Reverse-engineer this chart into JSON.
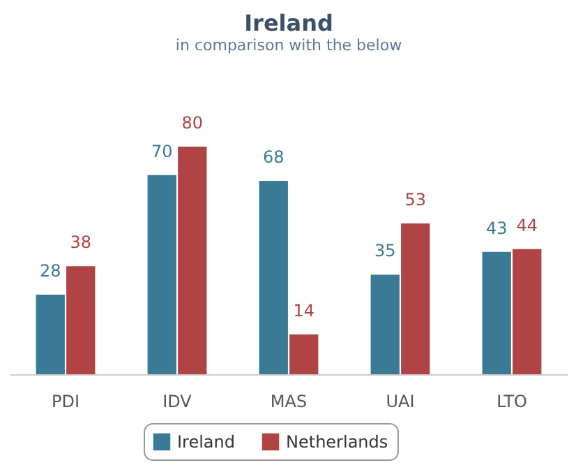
{
  "chart_data": {
    "type": "bar",
    "title": "Ireland",
    "subtitle": "in comparison with the below",
    "categories": [
      "PDI",
      "IDV",
      "MAS",
      "UAI",
      "LTO"
    ],
    "series": [
      {
        "name": "Ireland",
        "color": "#3a7a94",
        "values": [
          28,
          70,
          68,
          35,
          43
        ]
      },
      {
        "name": "Netherlands",
        "color": "#b04444",
        "values": [
          38,
          80,
          14,
          53,
          44
        ]
      }
    ],
    "data_labels": true,
    "legend": "bottom"
  }
}
